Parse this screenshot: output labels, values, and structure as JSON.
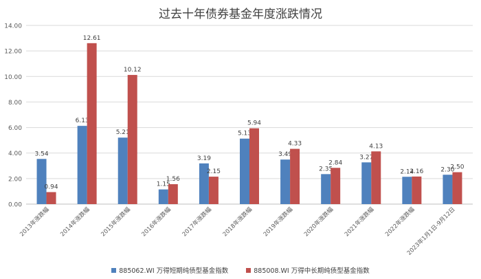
{
  "chart_data": {
    "type": "bar",
    "title": "过去十年债券基金年度涨跌情况",
    "categories": [
      "2013年涨跌幅",
      "2014年涨跌幅",
      "2015年涨跌幅",
      "2016年涨跌幅",
      "2017年涨跌幅",
      "2018年涨跌幅",
      "2019年涨跌幅",
      "2020年涨跌幅",
      "2021年涨跌幅",
      "2022年涨跌幅",
      "2023年1月1日-9月12日"
    ],
    "series": [
      {
        "name": "885062.WI 万得短期纯债型基金指数",
        "color": "#4f81bd",
        "values": [
          3.54,
          6.13,
          5.21,
          1.15,
          3.19,
          5.13,
          3.49,
          2.35,
          3.27,
          2.14,
          2.3
        ]
      },
      {
        "name": "885008.WI 万得中长期纯债型基金指数",
        "color": "#c0504d",
        "values": [
          0.94,
          12.61,
          10.12,
          1.56,
          2.15,
          5.94,
          4.33,
          2.84,
          4.13,
          2.16,
          2.5
        ]
      }
    ],
    "ylim": [
      0,
      14
    ],
    "yticks": [
      "0.00",
      "2.00",
      "4.00",
      "6.00",
      "8.00",
      "10.00",
      "12.00",
      "14.00"
    ],
    "grid": true,
    "legend": "bottom"
  }
}
